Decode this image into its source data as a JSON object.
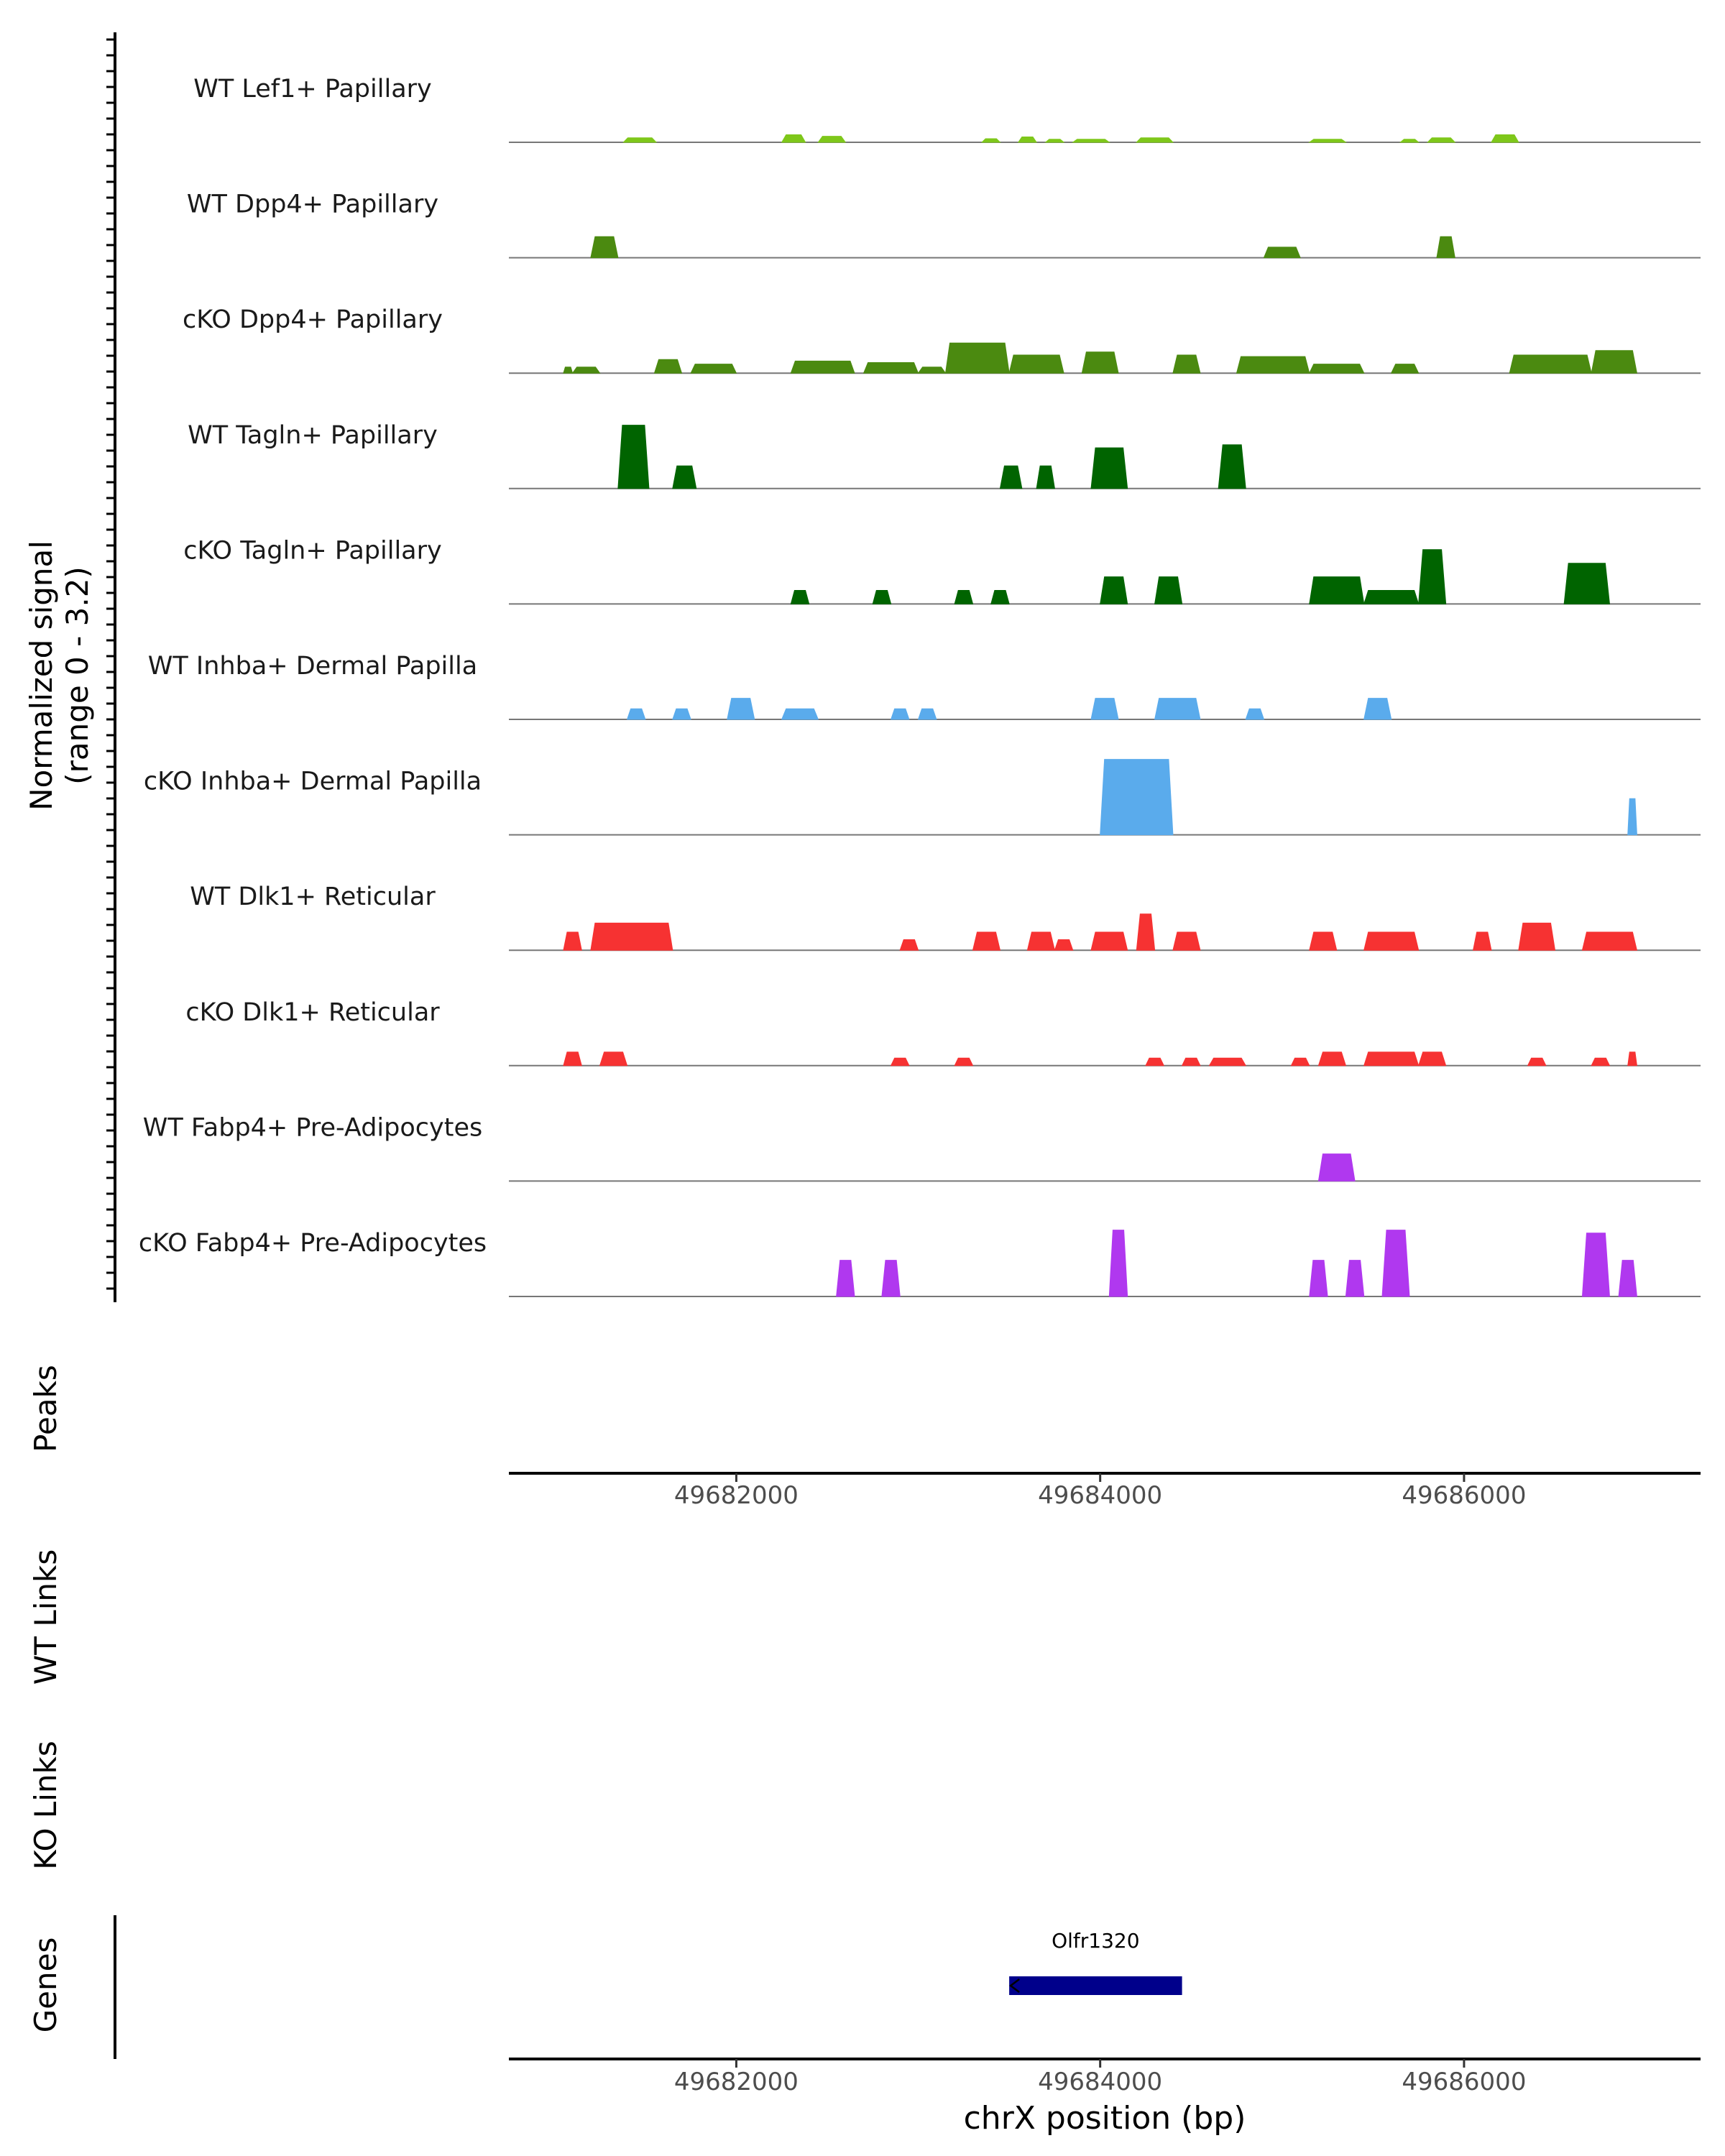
{
  "chart_data": {
    "type": "area",
    "signal_axis_label": [
      "Normalized signal",
      "(range 0 - 3.2)"
    ],
    "ylim": [
      0,
      3.2
    ],
    "xlim": [
      49680750,
      49687300
    ],
    "x_ticks": [
      49682000,
      49684000,
      49686000
    ],
    "x_tick_labels": [
      "49682000",
      "49684000",
      "49686000"
    ],
    "xlabel": "chrX position (bp)",
    "panel_labels": {
      "peaks": "Peaks",
      "wt_links": "WT Links",
      "ko_links": "KO Links",
      "genes": "Genes"
    },
    "genes": [
      {
        "name": "Olfr1320",
        "start": 49683500,
        "end": 49684450,
        "strand": "-",
        "color": "#00008b"
      }
    ],
    "tracks": [
      {
        "name": "WT Lef1+ Papillary",
        "color": "#7ec71a",
        "peaks": [
          [
            49681380,
            49681560,
            0.15
          ],
          [
            49682250,
            49682380,
            0.25
          ],
          [
            49682450,
            49682600,
            0.2
          ],
          [
            49683350,
            49683450,
            0.12
          ],
          [
            49683550,
            49683650,
            0.18
          ],
          [
            49683700,
            49683800,
            0.1
          ],
          [
            49683850,
            49684050,
            0.1
          ],
          [
            49684200,
            49684400,
            0.15
          ],
          [
            49685150,
            49685350,
            0.1
          ],
          [
            49685650,
            49685750,
            0.1
          ],
          [
            49685800,
            49685950,
            0.15
          ],
          [
            49686150,
            49686300,
            0.25
          ]
        ]
      },
      {
        "name": "WT Dpp4+ Papillary",
        "color": "#4b8a10",
        "peaks": [
          [
            49681200,
            49681350,
            0.7
          ],
          [
            49684900,
            49685100,
            0.35
          ],
          [
            49685850,
            49685950,
            0.7
          ]
        ]
      },
      {
        "name": "cKO Dpp4+ Papillary",
        "color": "#4b8a10",
        "peaks": [
          [
            49681050,
            49681100,
            0.2
          ],
          [
            49681100,
            49681250,
            0.2
          ],
          [
            49681550,
            49681700,
            0.45
          ],
          [
            49681750,
            49682000,
            0.3
          ],
          [
            49682300,
            49682650,
            0.4
          ],
          [
            49682700,
            49683000,
            0.35
          ],
          [
            49683000,
            49683150,
            0.2
          ],
          [
            49683150,
            49683500,
            1.0
          ],
          [
            49683500,
            49683800,
            0.6
          ],
          [
            49683900,
            49684100,
            0.7
          ],
          [
            49684400,
            49684550,
            0.6
          ],
          [
            49684750,
            49685150,
            0.55
          ],
          [
            49685150,
            49685450,
            0.3
          ],
          [
            49685600,
            49685750,
            0.3
          ],
          [
            49686250,
            49686700,
            0.6
          ],
          [
            49686700,
            49686950,
            0.75
          ]
        ]
      },
      {
        "name": "WT Tagln+ Papillary",
        "color": "#006400",
        "peaks": [
          [
            49681350,
            49681520,
            2.1
          ],
          [
            49681650,
            49681780,
            0.75
          ],
          [
            49683450,
            49683570,
            0.75
          ],
          [
            49683650,
            49683750,
            0.75
          ],
          [
            49683950,
            49684150,
            1.35
          ],
          [
            49684650,
            49684800,
            1.45
          ]
        ]
      },
      {
        "name": "cKO Tagln+ Papillary",
        "color": "#006400",
        "peaks": [
          [
            49682300,
            49682400,
            0.45
          ],
          [
            49682750,
            49682850,
            0.45
          ],
          [
            49683200,
            49683300,
            0.45
          ],
          [
            49683400,
            49683500,
            0.45
          ],
          [
            49684000,
            49684150,
            0.9
          ],
          [
            49684300,
            49684450,
            0.9
          ],
          [
            49685150,
            49685450,
            0.9
          ],
          [
            49685450,
            49685750,
            0.45
          ],
          [
            49685750,
            49685900,
            1.8
          ],
          [
            49686550,
            49686800,
            1.35
          ]
        ]
      },
      {
        "name": "WT Inhba+ Dermal Papilla",
        "color": "#5aabec",
        "peaks": [
          [
            49681400,
            49681500,
            0.35
          ],
          [
            49681650,
            49681750,
            0.35
          ],
          [
            49681950,
            49682100,
            0.7
          ],
          [
            49682250,
            49682450,
            0.35
          ],
          [
            49682850,
            49682950,
            0.35
          ],
          [
            49683000,
            49683100,
            0.35
          ],
          [
            49683950,
            49684100,
            0.7
          ],
          [
            49684300,
            49684550,
            0.7
          ],
          [
            49684800,
            49684900,
            0.35
          ],
          [
            49685450,
            49685600,
            0.7
          ]
        ]
      },
      {
        "name": "cKO Inhba+ Dermal Papilla",
        "color": "#5aabec",
        "peaks": [
          [
            49684000,
            49684400,
            2.5
          ],
          [
            49686900,
            49686950,
            1.2
          ]
        ]
      },
      {
        "name": "WT Dlk1+ Reticular",
        "color": "#f63232",
        "peaks": [
          [
            49681050,
            49681150,
            0.6
          ],
          [
            49681200,
            49681650,
            0.9
          ],
          [
            49682900,
            49683000,
            0.35
          ],
          [
            49683300,
            49683450,
            0.6
          ],
          [
            49683600,
            49683750,
            0.6
          ],
          [
            49683750,
            49683850,
            0.35
          ],
          [
            49683950,
            49684150,
            0.6
          ],
          [
            49684200,
            49684300,
            1.2
          ],
          [
            49684400,
            49684550,
            0.6
          ],
          [
            49685150,
            49685300,
            0.6
          ],
          [
            49685450,
            49685750,
            0.6
          ],
          [
            49686050,
            49686150,
            0.6
          ],
          [
            49686300,
            49686500,
            0.9
          ],
          [
            49686650,
            49686950,
            0.6
          ]
        ]
      },
      {
        "name": "cKO Dlk1+ Reticular",
        "color": "#f63232",
        "peaks": [
          [
            49681050,
            49681150,
            0.45
          ],
          [
            49681250,
            49681400,
            0.45
          ],
          [
            49682850,
            49682950,
            0.25
          ],
          [
            49683200,
            49683300,
            0.25
          ],
          [
            49684250,
            49684350,
            0.25
          ],
          [
            49684450,
            49684550,
            0.25
          ],
          [
            49684600,
            49684800,
            0.25
          ],
          [
            49685050,
            49685150,
            0.25
          ],
          [
            49685200,
            49685350,
            0.45
          ],
          [
            49685450,
            49685750,
            0.45
          ],
          [
            49685750,
            49685900,
            0.45
          ],
          [
            49686350,
            49686450,
            0.25
          ],
          [
            49686700,
            49686800,
            0.25
          ],
          [
            49686900,
            49686950,
            0.45
          ]
        ]
      },
      {
        "name": "WT Fabp4+ Pre-Adipocytes",
        "color": "#b038ef",
        "peaks": [
          [
            49685200,
            49685400,
            0.9
          ]
        ]
      },
      {
        "name": "cKO Fabp4+ Pre-Adipocytes",
        "color": "#b038ef",
        "peaks": [
          [
            49682550,
            49682650,
            1.2
          ],
          [
            49682800,
            49682900,
            1.2
          ],
          [
            49684050,
            49684150,
            2.2
          ],
          [
            49685150,
            49685250,
            1.2
          ],
          [
            49685350,
            49685450,
            1.2
          ],
          [
            49685550,
            49685700,
            2.2
          ],
          [
            49686650,
            49686800,
            2.1
          ],
          [
            49686850,
            49686950,
            1.2
          ]
        ]
      }
    ]
  }
}
